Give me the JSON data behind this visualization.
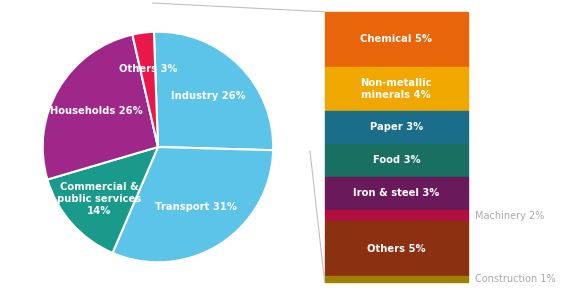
{
  "main_values": [
    26,
    31,
    14,
    26,
    3
  ],
  "main_colors": [
    "#5bc4e8",
    "#5bc4e8",
    "#1a9a8a",
    "#a0278a",
    "#e8184a"
  ],
  "main_label_texts": [
    "Industry 26%",
    "Transport 31%",
    "Commercial &\npublic services\n14%",
    "Households 26%",
    "Others 3%"
  ],
  "main_label_radii": [
    0.62,
    0.62,
    0.68,
    0.62,
    0.68
  ],
  "startangle": 92,
  "industry_labels": [
    "Chemical 5%",
    "Non-metallic\nminerals 4%",
    "Paper 3%",
    "Food 3%",
    "Iron & steel 3%",
    "Machinery 2%",
    "Others 5%",
    "Construction 1%"
  ],
  "industry_values": [
    5,
    4,
    3,
    3,
    3,
    2,
    5,
    1
  ],
  "industry_colors": [
    "#e8650a",
    "#f0a800",
    "#1a6e8a",
    "#197060",
    "#6a1a5a",
    "#b01040",
    "#8b3010",
    "#a08000"
  ],
  "industry_small": [
    "Machinery 2%",
    "Construction 1%"
  ],
  "bg_color": "#ffffff",
  "line_color": "#c0c0c0",
  "small_text_color": "#aaaaaa"
}
